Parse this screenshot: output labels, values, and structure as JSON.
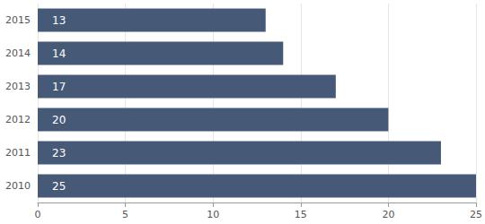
{
  "chart_data": {
    "type": "bar",
    "orientation": "horizontal",
    "categories": [
      "2010",
      "2011",
      "2012",
      "2013",
      "2014",
      "2015"
    ],
    "values": [
      25,
      23,
      20,
      17,
      14,
      13
    ],
    "color": "#465a78",
    "xlim": [
      0,
      25
    ],
    "xticks": [
      0,
      5,
      10,
      15,
      20,
      25
    ],
    "grid": true,
    "data_labels": true
  }
}
